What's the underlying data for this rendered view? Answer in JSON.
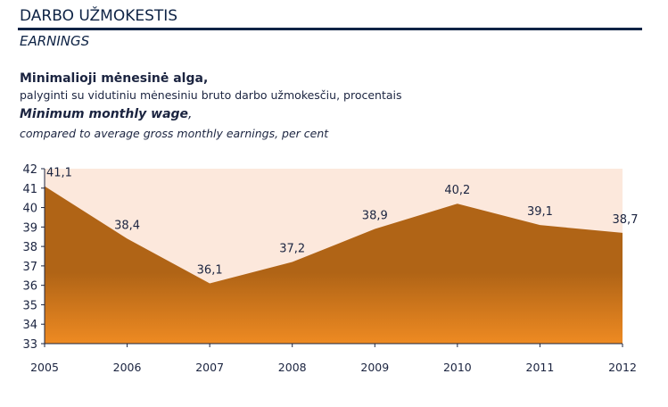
{
  "header": {
    "title_lt": "DARBO UŽMOKESTIS",
    "title_en": "EARNINGS",
    "accent_color": "#0e2345"
  },
  "chart_data": {
    "type": "area",
    "title_lt_main": "Minimalioji mėnesinė alga,",
    "title_lt_sub": "palyginti su vidutiniu mėnesiniu bruto darbo užmokesčiu, procentais",
    "title_en_main": "Minimum monthly wage",
    "title_en_comma": ",",
    "title_en_sub": "compared to average gross monthly earnings, per cent",
    "categories": [
      "2005",
      "2006",
      "2007",
      "2008",
      "2009",
      "2010",
      "2011",
      "2012"
    ],
    "values": [
      41.1,
      38.4,
      36.1,
      37.2,
      38.9,
      40.2,
      39.1,
      38.7
    ],
    "data_labels": [
      "41,1",
      "38,4",
      "36,1",
      "37,2",
      "38,9",
      "40,2",
      "39,1",
      "38,7"
    ],
    "ylim": [
      33,
      42
    ],
    "yticks": [
      "33",
      "34",
      "35",
      "36",
      "37",
      "38",
      "39",
      "40",
      "41",
      "42"
    ],
    "xlabel": "",
    "ylabel": "",
    "grid": false,
    "legend": "none",
    "colors": {
      "background": "#fce8dc",
      "area_top": "#b06416",
      "area_bottom": "#ee8a22",
      "axis": "#1b2440"
    }
  }
}
